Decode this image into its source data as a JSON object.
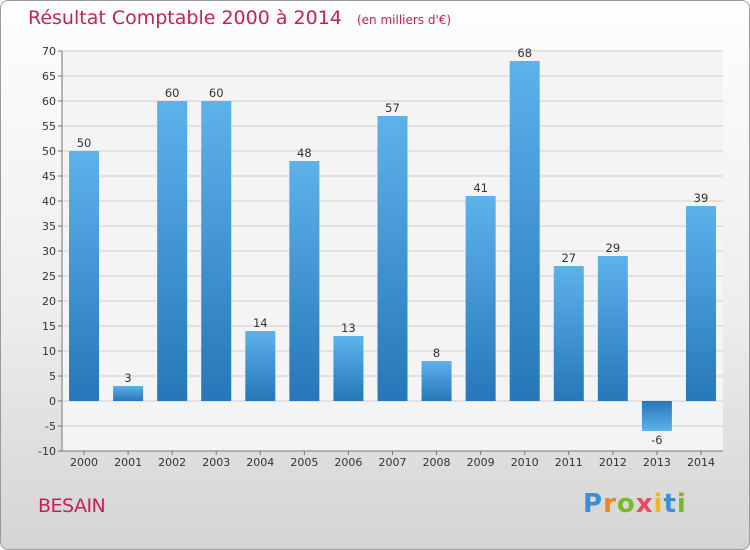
{
  "chart_data": {
    "type": "bar",
    "title": "Résultat Comptable 2000 à 2014",
    "unit": "(en milliers d'€)",
    "categories": [
      "2000",
      "2001",
      "2002",
      "2003",
      "2004",
      "2005",
      "2006",
      "2007",
      "2008",
      "2009",
      "2010",
      "2011",
      "2012",
      "2013",
      "2014"
    ],
    "values": [
      50,
      3,
      60,
      60,
      14,
      48,
      13,
      57,
      8,
      41,
      68,
      27,
      29,
      -6,
      39
    ],
    "ylim": [
      -10,
      70
    ],
    "yticks": [
      -10,
      -5,
      0,
      5,
      10,
      15,
      20,
      25,
      30,
      35,
      40,
      45,
      50,
      55,
      60,
      65,
      70
    ],
    "xlabel": "",
    "ylabel": "",
    "grid": "horizontal"
  },
  "commune": "BESAIN",
  "logo": {
    "letters": [
      "P",
      "r",
      "o",
      "x",
      "i",
      "t",
      "i"
    ],
    "colors": [
      "#3a8fd8",
      "#e8891f",
      "#7ab828",
      "#e84a5f",
      "#f2b71f",
      "#3a8fd8",
      "#7ab828"
    ]
  },
  "colors": {
    "title": "#c81e5a",
    "bar_light": "#5aaee8",
    "bar_dark": "#2478bb"
  }
}
